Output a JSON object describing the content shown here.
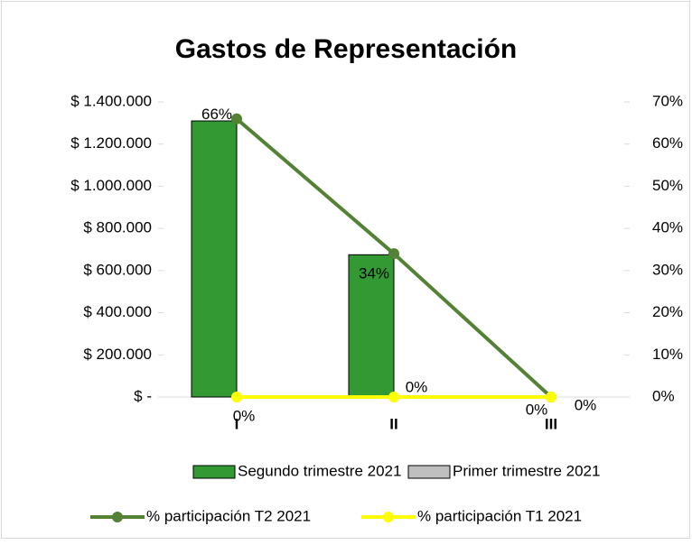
{
  "chart_data": {
    "type": "bar_line",
    "title": "Gastos de Representación",
    "categories": [
      "I",
      "II",
      "III"
    ],
    "series": [
      {
        "name": "Segundo trimestre 2021",
        "type": "bar",
        "color": "#339933",
        "values": [
          1310000,
          675000,
          0
        ]
      },
      {
        "name": "Primer trimestre 2021",
        "type": "bar",
        "color": "#bfbfbf",
        "values": [
          0,
          0,
          0
        ]
      },
      {
        "name": "% participación T2 2021",
        "type": "line",
        "axis": "y2",
        "color": "#548235",
        "values": [
          66,
          34,
          0
        ],
        "value_labels": [
          "66%",
          "34%",
          "0%"
        ]
      },
      {
        "name": "% participación T1 2021",
        "type": "line",
        "axis": "y2",
        "color": "#ffff00",
        "values": [
          0,
          0,
          0
        ],
        "value_labels": [
          "0%",
          "0%",
          "0%"
        ]
      }
    ],
    "ylim": [
      0,
      1400000
    ],
    "yticks": [
      {
        "value": 0,
        "label": "$ -"
      },
      {
        "value": 200000,
        "label": "$ 200.000"
      },
      {
        "value": 400000,
        "label": "$ 400.000"
      },
      {
        "value": 600000,
        "label": "$ 600.000"
      },
      {
        "value": 800000,
        "label": "$ 800.000"
      },
      {
        "value": 1000000,
        "label": "$ 1.000.000"
      },
      {
        "value": 1200000,
        "label": "$ 1.200.000"
      },
      {
        "value": 1400000,
        "label": "$ 1.400.000"
      }
    ],
    "y2lim": [
      0,
      70
    ],
    "y2ticks": [
      {
        "value": 0,
        "label": "0%"
      },
      {
        "value": 10,
        "label": "10%"
      },
      {
        "value": 20,
        "label": "20%"
      },
      {
        "value": 30,
        "label": "30%"
      },
      {
        "value": 40,
        "label": "40%"
      },
      {
        "value": 50,
        "label": "50%"
      },
      {
        "value": 60,
        "label": "60%"
      },
      {
        "value": 70,
        "label": "70%"
      }
    ],
    "grid": false,
    "legend": "bottom"
  }
}
